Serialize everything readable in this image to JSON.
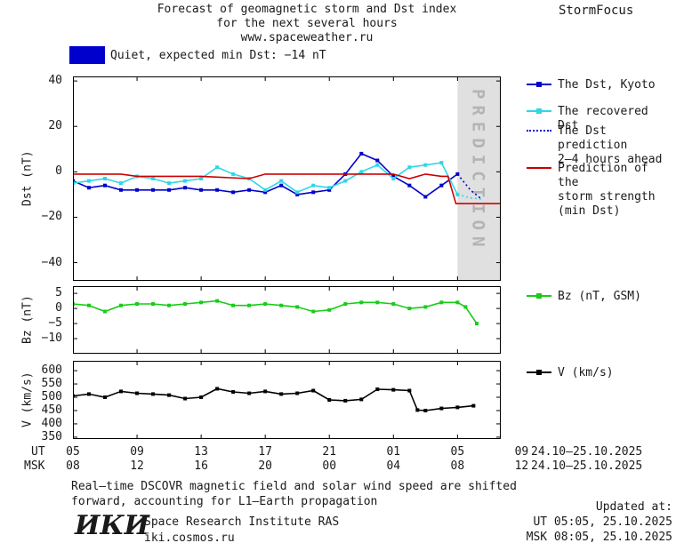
{
  "colors": {
    "dst_kyoto": "#0000cc",
    "recovered": "#2fd6e6",
    "storm_red": "#cc0000",
    "bz_green": "#19cc19",
    "v_black": "#000000",
    "band_gray": "#e0e0e0",
    "band_text_gray": "#b4b4b4",
    "quiet_swatch": "#0000cc"
  },
  "header": {
    "title_line1": "Forecast of geomagnetic storm and Dst index",
    "title_line2": "for the next several hours",
    "title_line3": "www.spaceweather.ru",
    "brand": "StormFocus"
  },
  "status": {
    "label": "Quiet, expected min Dst: −14 nT"
  },
  "legend": {
    "dst_kyoto": "The Dst, Kyoto",
    "recovered": "The recovered Dst",
    "prediction_line1": "The Dst prediction",
    "prediction_line2": "2–4 hours ahead",
    "storm_line1": "Prediction of the",
    "storm_line2": "storm strength",
    "storm_line3": "(min Dst)",
    "bz": "Bz (nT, GSM)",
    "v": "V (km/s)"
  },
  "axes": {
    "dst_label": "Dst (nT)",
    "bz_label": "Bz (nT)",
    "v_label": "V (km/s)",
    "ut_label": "UT",
    "msk_label": "MSK",
    "tick_hours": [
      5,
      9,
      13,
      17,
      21,
      25,
      29,
      33
    ],
    "ut_hours": [
      "05",
      "09",
      "13",
      "17",
      "21",
      "01",
      "05",
      "09"
    ],
    "msk_hours": [
      "08",
      "12",
      "16",
      "20",
      "00",
      "04",
      "08",
      "12"
    ],
    "ut_date_range": "24.10–25.10.2025",
    "msk_date_range": "24.10–25.10.2025"
  },
  "footer": {
    "note_line1": "Real–time DSCOVR magnetic field and solar wind speed are shifted",
    "note_line2": "forward, accounting for L1–Earth propagation",
    "logo": "ИКИ",
    "institute": "Space Research Institute RAS",
    "site": "iki.cosmos.ru",
    "updated_label": "Updated at:",
    "updated_ut": "UT  05:05, 25.10.2025",
    "updated_msk": "MSK 08:05, 25.10.2025"
  },
  "chart_data": [
    {
      "id": "dst",
      "type": "line",
      "ylabel": "Dst (nT)",
      "xlim": [
        5,
        31.7
      ],
      "ylim": [
        -48,
        42
      ],
      "yticks": [
        40,
        20,
        0,
        -20,
        -40
      ],
      "ytick_labels": [
        "40",
        "20",
        "0",
        "−20",
        "−40"
      ],
      "band": {
        "start_hour": 29,
        "label": "PREDICTION",
        "fill": "#e0e0e0",
        "text_color": "#b4b4b4"
      },
      "series": [
        {
          "name": "dst-kyoto",
          "label": "The Dst, Kyoto",
          "color": "#0000cc",
          "marker": "square",
          "x": [
            5,
            6,
            7,
            8,
            9,
            10,
            11,
            12,
            13,
            14,
            15,
            16,
            17,
            18,
            19,
            20,
            21,
            22,
            23,
            24,
            25,
            26,
            27,
            28,
            29
          ],
          "values": [
            -4,
            -7,
            -6,
            -8,
            -8,
            -8,
            -8,
            -7,
            -8,
            -8,
            -9,
            -8,
            -9,
            -6,
            -10,
            -9,
            -8,
            -1,
            8,
            5,
            -2,
            -6,
            -11,
            -6,
            -1
          ]
        },
        {
          "name": "recovered-dst",
          "label": "The recovered Dst",
          "color": "#2fd6e6",
          "marker": "square",
          "x": [
            5,
            6,
            7,
            8,
            9,
            10,
            11,
            12,
            13,
            14,
            15,
            16,
            17,
            18,
            19,
            20,
            21,
            22,
            23,
            24,
            25,
            26,
            27,
            28,
            29
          ],
          "values": [
            -5,
            -4,
            -3,
            -5,
            -2,
            -3,
            -5,
            -4,
            -3,
            2,
            -1,
            -3,
            -8,
            -4,
            -9,
            -6,
            -7,
            -4,
            0,
            3,
            -3,
            2,
            3,
            4,
            -10
          ]
        },
        {
          "name": "dst-prediction-kyoto",
          "label": "The Dst prediction 2–4 hours ahead",
          "color": "#0000cc",
          "style": "dotted",
          "x": [
            29,
            29.8,
            30.5
          ],
          "values": [
            -1,
            -8,
            -12
          ]
        },
        {
          "name": "dst-prediction-recovered",
          "label": "The Dst prediction 2–4 hours ahead",
          "color": "#2fd6e6",
          "style": "dotted",
          "x": [
            29,
            29.8,
            30.5
          ],
          "values": [
            -10,
            -11.5,
            -12
          ]
        },
        {
          "name": "storm-strength-prediction",
          "label": "Prediction of the storm strength (min Dst)",
          "color": "#cc0000",
          "x": [
            5,
            8,
            9,
            13,
            16,
            17,
            21,
            25,
            26,
            27,
            28,
            28.4,
            28.9,
            31.7
          ],
          "values": [
            -1,
            -1,
            -2,
            -2,
            -3,
            -1,
            -1,
            -1,
            -3,
            -1,
            -2,
            -2,
            -14,
            -14
          ]
        }
      ]
    },
    {
      "id": "bz",
      "type": "line",
      "ylabel": "Bz (nT)",
      "xlim": [
        5,
        31.7
      ],
      "ylim": [
        -15,
        7.4
      ],
      "yticks": [
        5,
        0,
        -5,
        -10
      ],
      "ytick_labels": [
        "5",
        "0",
        "−5",
        "−10"
      ],
      "series": [
        {
          "name": "bz-gsm",
          "label": "Bz (nT, GSM)",
          "color": "#19cc19",
          "marker": "square",
          "x": [
            5,
            6,
            7,
            8,
            9,
            10,
            11,
            12,
            13,
            14,
            15,
            16,
            17,
            18,
            19,
            20,
            21,
            22,
            23,
            24,
            25,
            26,
            27,
            28,
            29,
            29.5,
            30.2
          ],
          "values": [
            1.5,
            1,
            -1,
            1,
            1.5,
            1.5,
            1,
            1.5,
            2,
            2.5,
            1,
            1,
            1.5,
            1,
            0.5,
            -1,
            -0.5,
            1.5,
            2,
            2,
            1.5,
            0,
            0.5,
            2,
            2,
            0.5,
            -5
          ]
        }
      ]
    },
    {
      "id": "v",
      "type": "line",
      "ylabel": "V (km/s)",
      "xlim": [
        5,
        31.7
      ],
      "ylim": [
        343,
        637
      ],
      "yticks": [
        600,
        550,
        500,
        450,
        400,
        350
      ],
      "ytick_labels": [
        "600",
        "550",
        "500",
        "450",
        "400",
        "350"
      ],
      "series": [
        {
          "name": "solar-wind-speed",
          "label": "V (km/s)",
          "color": "#000000",
          "marker": "square",
          "x": [
            5,
            6,
            7,
            8,
            9,
            10,
            11,
            12,
            13,
            14,
            15,
            16,
            17,
            18,
            19,
            20,
            21,
            22,
            23,
            24,
            25,
            26,
            26.5,
            27,
            28,
            29,
            30
          ],
          "values": [
            505,
            512,
            500,
            522,
            515,
            512,
            508,
            495,
            500,
            532,
            520,
            515,
            522,
            512,
            515,
            525,
            490,
            487,
            492,
            530,
            528,
            525,
            452,
            450,
            458,
            462,
            468
          ]
        }
      ]
    }
  ]
}
